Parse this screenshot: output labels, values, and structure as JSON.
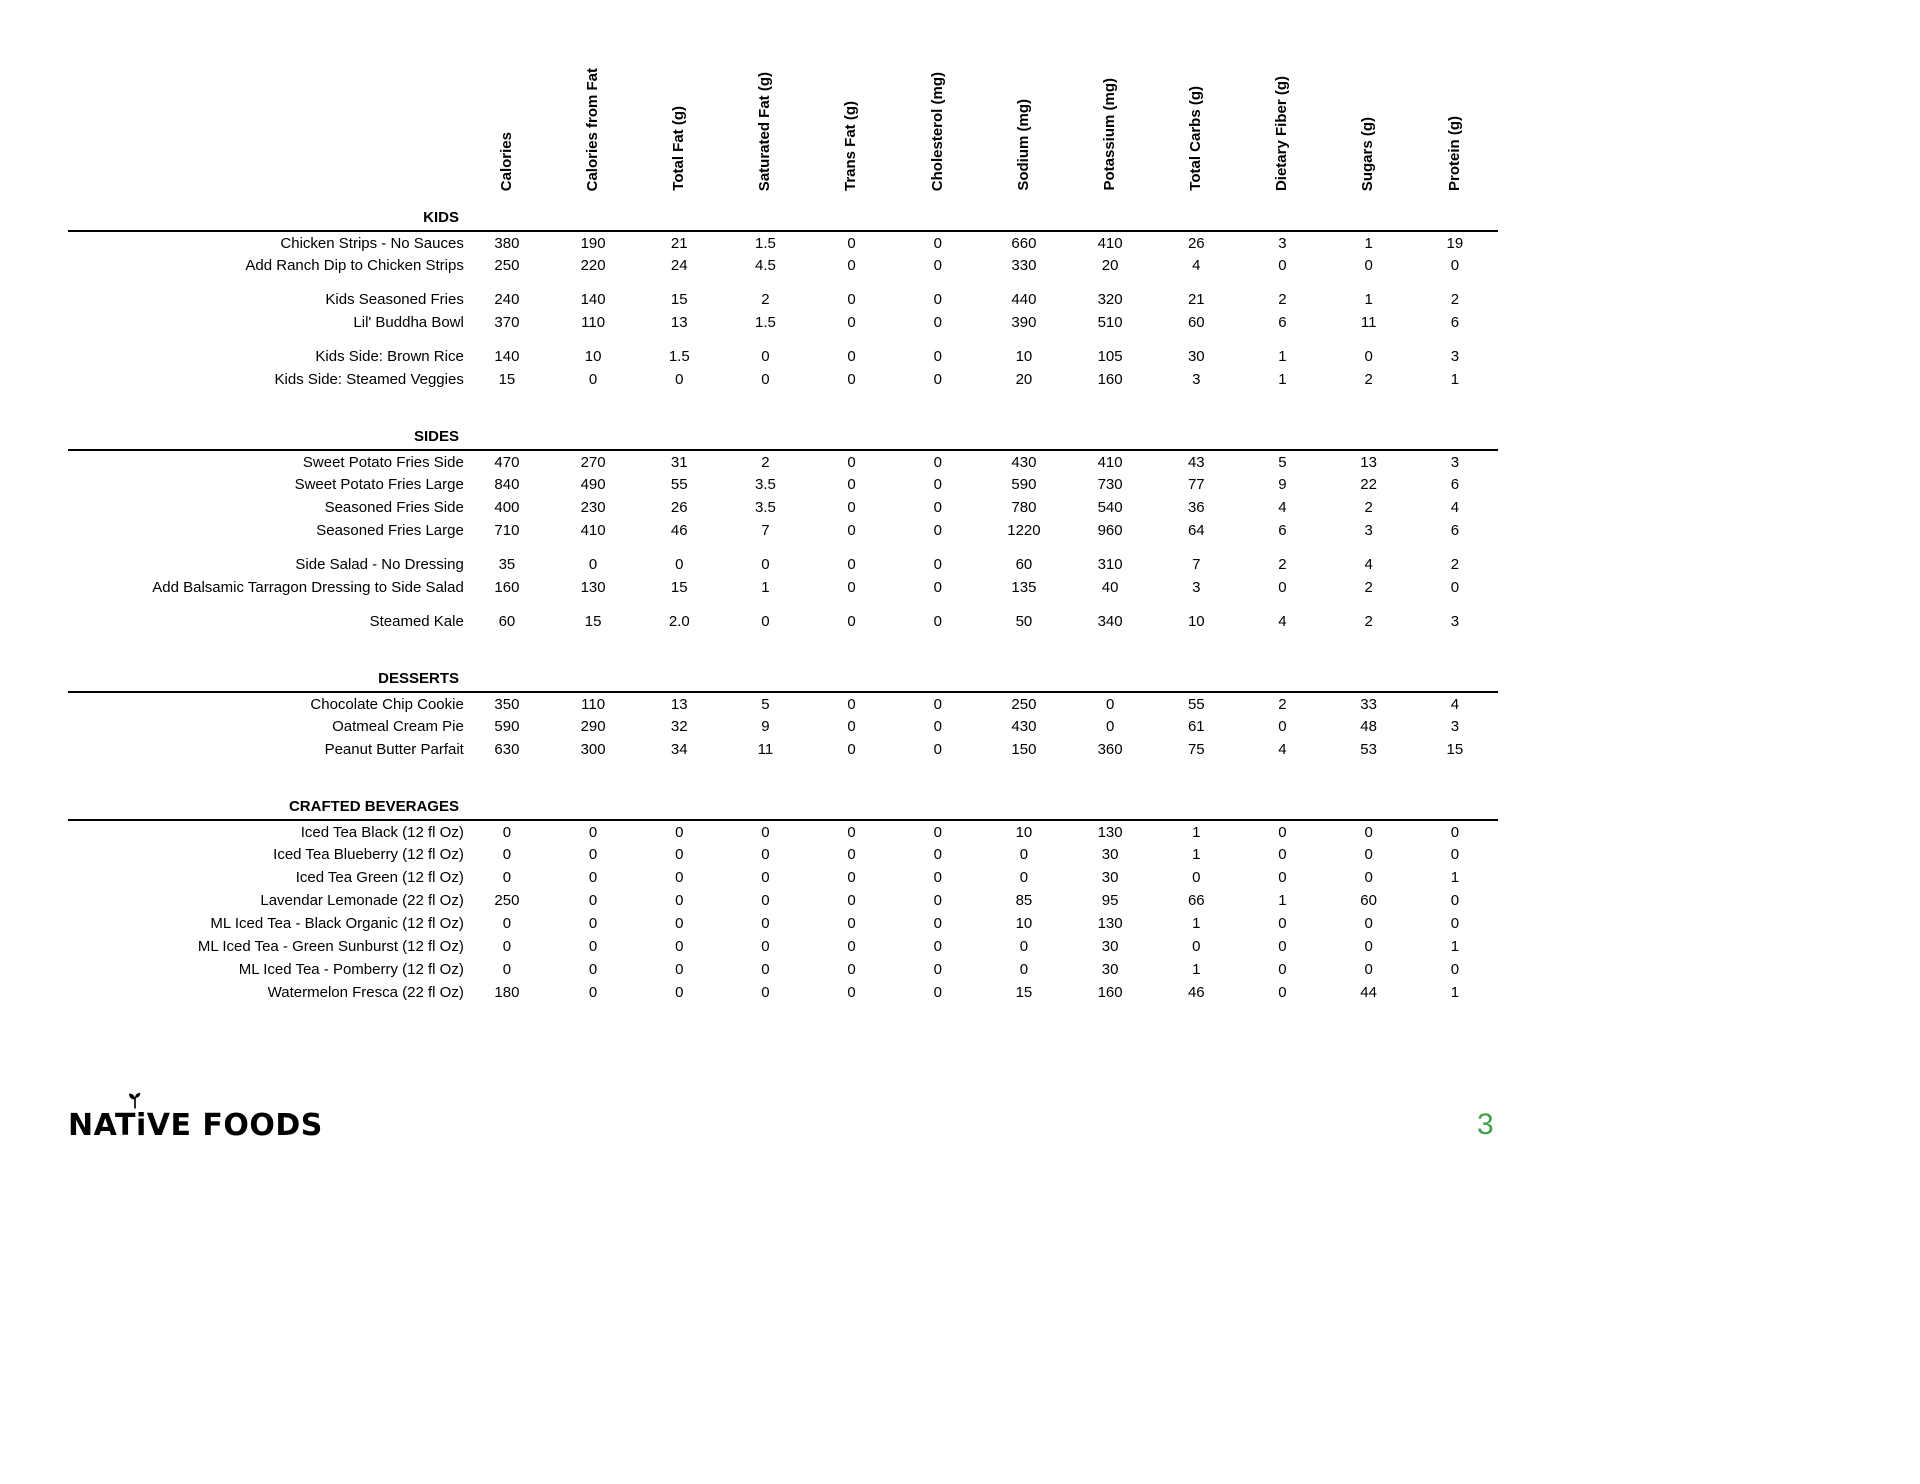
{
  "page": {
    "number": "3",
    "number_color": "#43a047",
    "background": "#ffffff",
    "text_color": "#000000"
  },
  "logo": {
    "text": "NATiVE FOODS",
    "icon": "sprout"
  },
  "table": {
    "columns": [
      "Calories",
      "Calories from Fat",
      "Total Fat (g)",
      "Saturated Fat (g)",
      "Trans Fat (g)",
      "Cholesterol (mg)",
      "Sodium (mg)",
      "Potassium (mg)",
      "Total Carbs (g)",
      "Dietary Fiber (g)",
      "Sugars (g)",
      "Protein (g)"
    ],
    "sections": [
      {
        "title": "KIDS",
        "groups": [
          [
            {
              "name": "Chicken Strips - No Sauces",
              "values": [
                "380",
                "190",
                "21",
                "1.5",
                "0",
                "0",
                "660",
                "410",
                "26",
                "3",
                "1",
                "19"
              ]
            },
            {
              "name": "Add Ranch Dip to Chicken Strips",
              "values": [
                "250",
                "220",
                "24",
                "4.5",
                "0",
                "0",
                "330",
                "20",
                "4",
                "0",
                "0",
                "0"
              ]
            }
          ],
          [
            {
              "name": "Kids Seasoned Fries",
              "values": [
                "240",
                "140",
                "15",
                "2",
                "0",
                "0",
                "440",
                "320",
                "21",
                "2",
                "1",
                "2"
              ]
            },
            {
              "name": "Lil' Buddha Bowl",
              "values": [
                "370",
                "110",
                "13",
                "1.5",
                "0",
                "0",
                "390",
                "510",
                "60",
                "6",
                "11",
                "6"
              ]
            }
          ],
          [
            {
              "name": "Kids Side: Brown Rice",
              "values": [
                "140",
                "10",
                "1.5",
                "0",
                "0",
                "0",
                "10",
                "105",
                "30",
                "1",
                "0",
                "3"
              ]
            },
            {
              "name": "Kids Side: Steamed Veggies",
              "values": [
                "15",
                "0",
                "0",
                "0",
                "0",
                "0",
                "20",
                "160",
                "3",
                "1",
                "2",
                "1"
              ]
            }
          ]
        ]
      },
      {
        "title": "SIDES",
        "groups": [
          [
            {
              "name": "Sweet Potato Fries Side",
              "values": [
                "470",
                "270",
                "31",
                "2",
                "0",
                "0",
                "430",
                "410",
                "43",
                "5",
                "13",
                "3"
              ]
            },
            {
              "name": "Sweet Potato Fries Large",
              "values": [
                "840",
                "490",
                "55",
                "3.5",
                "0",
                "0",
                "590",
                "730",
                "77",
                "9",
                "22",
                "6"
              ]
            },
            {
              "name": "Seasoned Fries Side",
              "values": [
                "400",
                "230",
                "26",
                "3.5",
                "0",
                "0",
                "780",
                "540",
                "36",
                "4",
                "2",
                "4"
              ]
            },
            {
              "name": "Seasoned Fries Large",
              "values": [
                "710",
                "410",
                "46",
                "7",
                "0",
                "0",
                "1220",
                "960",
                "64",
                "6",
                "3",
                "6"
              ]
            }
          ],
          [
            {
              "name": "Side Salad - No Dressing",
              "values": [
                "35",
                "0",
                "0",
                "0",
                "0",
                "0",
                "60",
                "310",
                "7",
                "2",
                "4",
                "2"
              ]
            },
            {
              "name": "Add Balsamic Tarragon Dressing to Side Salad",
              "values": [
                "160",
                "130",
                "15",
                "1",
                "0",
                "0",
                "135",
                "40",
                "3",
                "0",
                "2",
                "0"
              ]
            }
          ],
          [
            {
              "name": "Steamed Kale",
              "values": [
                "60",
                "15",
                "2.0",
                "0",
                "0",
                "0",
                "50",
                "340",
                "10",
                "4",
                "2",
                "3"
              ]
            }
          ]
        ]
      },
      {
        "title": "DESSERTS",
        "groups": [
          [
            {
              "name": "Chocolate Chip Cookie",
              "values": [
                "350",
                "110",
                "13",
                "5",
                "0",
                "0",
                "250",
                "0",
                "55",
                "2",
                "33",
                "4"
              ]
            },
            {
              "name": "Oatmeal Cream Pie",
              "values": [
                "590",
                "290",
                "32",
                "9",
                "0",
                "0",
                "430",
                "0",
                "61",
                "0",
                "48",
                "3"
              ]
            },
            {
              "name": "Peanut Butter Parfait",
              "values": [
                "630",
                "300",
                "34",
                "11",
                "0",
                "0",
                "150",
                "360",
                "75",
                "4",
                "53",
                "15"
              ]
            }
          ]
        ]
      },
      {
        "title": "CRAFTED BEVERAGES",
        "groups": [
          [
            {
              "name": "Iced Tea Black (12 fl Oz)",
              "values": [
                "0",
                "0",
                "0",
                "0",
                "0",
                "0",
                "10",
                "130",
                "1",
                "0",
                "0",
                "0"
              ]
            },
            {
              "name": "Iced Tea Blueberry (12 fl Oz)",
              "values": [
                "0",
                "0",
                "0",
                "0",
                "0",
                "0",
                "0",
                "30",
                "1",
                "0",
                "0",
                "0"
              ]
            },
            {
              "name": "Iced Tea Green (12 fl Oz)",
              "values": [
                "0",
                "0",
                "0",
                "0",
                "0",
                "0",
                "0",
                "30",
                "0",
                "0",
                "0",
                "1"
              ]
            },
            {
              "name": "Lavendar Lemonade (22 fl Oz)",
              "values": [
                "250",
                "0",
                "0",
                "0",
                "0",
                "0",
                "85",
                "95",
                "66",
                "1",
                "60",
                "0"
              ]
            },
            {
              "name": "ML Iced Tea - Black Organic (12 fl Oz)",
              "values": [
                "0",
                "0",
                "0",
                "0",
                "0",
                "0",
                "10",
                "130",
                "1",
                "0",
                "0",
                "0"
              ]
            },
            {
              "name": "ML Iced Tea - Green Sunburst (12 fl Oz)",
              "values": [
                "0",
                "0",
                "0",
                "0",
                "0",
                "0",
                "0",
                "30",
                "0",
                "0",
                "0",
                "1"
              ]
            },
            {
              "name": "ML Iced Tea - Pomberry (12 fl Oz)",
              "values": [
                "0",
                "0",
                "0",
                "0",
                "0",
                "0",
                "0",
                "30",
                "1",
                "0",
                "0",
                "0"
              ]
            },
            {
              "name": "Watermelon Fresca (22 fl Oz)",
              "values": [
                "180",
                "0",
                "0",
                "0",
                "0",
                "0",
                "15",
                "160",
                "46",
                "0",
                "44",
                "1"
              ]
            }
          ]
        ]
      }
    ]
  }
}
